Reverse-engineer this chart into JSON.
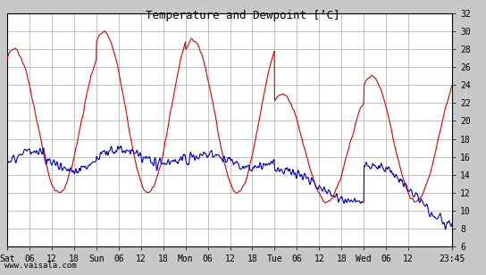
{
  "title": "Temperature and Dewpoint [’C]",
  "ylim": [
    6,
    32
  ],
  "yticks": [
    6,
    8,
    10,
    12,
    14,
    16,
    18,
    20,
    22,
    24,
    26,
    28,
    30,
    32
  ],
  "x_labels": [
    "Sat",
    "06",
    "12",
    "18",
    "Sun",
    "06",
    "12",
    "18",
    "Mon",
    "06",
    "12",
    "18",
    "Tue",
    "06",
    "12",
    "18",
    "Wed",
    "06",
    "12",
    "23:45"
  ],
  "x_tick_hours": [
    0,
    6,
    12,
    18,
    24,
    30,
    36,
    42,
    48,
    54,
    60,
    66,
    72,
    78,
    84,
    90,
    96,
    102,
    108,
    119.75
  ],
  "watermark": "www.vaisala.com",
  "bg_color": "#ffffff",
  "grid_color": "#b8b8b8",
  "temp_color": "#dd0000",
  "dewp_color": "#0000bb",
  "line_width": 0.8,
  "fig_bg": "#c8c8c8",
  "total_hours": 119.75
}
